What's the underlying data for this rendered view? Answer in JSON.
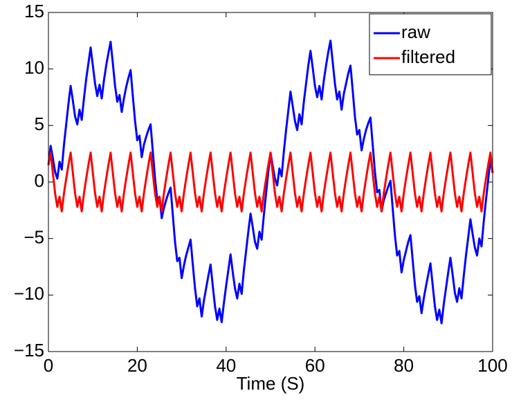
{
  "chart_data": {
    "type": "line",
    "x_label": "Time (S)",
    "xlim": [
      0,
      100
    ],
    "xticks": [
      0,
      20,
      40,
      60,
      80,
      100
    ],
    "ylim": [
      -15,
      15
    ],
    "yticks": [
      {
        "value": -15,
        "label": "−15"
      },
      {
        "value": -10,
        "label": "−10"
      },
      {
        "value": -5,
        "label": "−5"
      },
      0,
      5,
      10,
      15
    ],
    "legend": "northeast",
    "x": [
      0,
      0.5,
      1,
      1.5,
      2,
      2.5,
      3,
      3.5,
      4,
      4.5,
      5,
      5.5,
      6,
      6.5,
      7,
      7.5,
      8,
      8.5,
      9,
      9.5,
      10,
      10.5,
      11,
      11.5,
      12,
      12.5,
      13,
      13.5,
      14,
      14.5,
      15,
      15.5,
      16,
      16.5,
      17,
      17.5,
      18,
      18.5,
      19,
      19.5,
      20,
      20.5,
      21,
      21.5,
      22,
      22.5,
      23,
      23.5,
      24,
      24.5,
      25,
      25.5,
      26,
      26.5,
      27,
      27.5,
      28,
      28.5,
      29,
      29.5,
      30,
      30.5,
      31,
      31.5,
      32,
      32.5,
      33,
      33.5,
      34,
      34.5,
      35,
      35.5,
      36,
      36.5,
      37,
      37.5,
      38,
      38.5,
      39,
      39.5,
      40,
      40.5,
      41,
      41.5,
      42,
      42.5,
      43,
      43.5,
      44,
      44.5,
      45,
      45.5,
      46,
      46.5,
      47,
      47.5,
      48,
      48.5,
      49,
      49.5,
      50,
      50.5,
      51,
      51.5,
      52,
      52.5,
      53,
      53.5,
      54,
      54.5,
      55,
      55.5,
      56,
      56.5,
      57,
      57.5,
      58,
      58.5,
      59,
      59.5,
      60,
      60.5,
      61,
      61.5,
      62,
      62.5,
      63,
      63.5,
      64,
      64.5,
      65,
      65.5,
      66,
      66.5,
      67,
      67.5,
      68,
      68.5,
      69,
      69.5,
      70,
      70.5,
      71,
      71.5,
      72,
      72.5,
      73,
      73.5,
      74,
      74.5,
      75,
      75.5,
      76,
      76.5,
      77,
      77.5,
      78,
      78.5,
      79,
      79.5,
      80,
      80.5,
      81,
      81.5,
      82,
      82.5,
      83,
      83.5,
      84,
      84.5,
      85,
      85.5,
      86,
      86.5,
      87,
      87.5,
      88,
      88.5,
      89,
      89.5,
      90,
      90.5,
      91,
      91.5,
      92,
      92.5,
      93,
      93.5,
      94,
      94.5,
      95,
      95.5,
      96,
      96.5,
      97,
      97.5,
      98,
      98.5,
      99,
      99.5,
      100
    ],
    "series": [
      {
        "name": "raw",
        "color": "#0000ff",
        "values": [
          1.5,
          3.2,
          2.1,
          0.9,
          0.3,
          1.8,
          1.1,
          3.3,
          5.1,
          6.9,
          8.5,
          7.2,
          5.8,
          5.1,
          6.4,
          5.5,
          7.4,
          9.1,
          10.5,
          11.9,
          10.3,
          8.7,
          7.6,
          8.6,
          7.4,
          9.0,
          10.3,
          11.4,
          12.4,
          10.5,
          8.5,
          7.1,
          7.7,
          6.2,
          7.4,
          8.4,
          9.2,
          9.9,
          7.6,
          5.4,
          3.7,
          4.1,
          2.2,
          3.3,
          4.0,
          4.6,
          5.1,
          2.7,
          0.3,
          -1.6,
          -1.3,
          -3.2,
          -2.3,
          -1.6,
          -1.0,
          -0.5,
          -2.9,
          -5.3,
          -7.0,
          -6.7,
          -8.5,
          -7.4,
          -6.5,
          -5.8,
          -5.1,
          -7.3,
          -9.4,
          -11.0,
          -10.3,
          -11.9,
          -10.5,
          -9.4,
          -8.3,
          -7.3,
          -9.2,
          -11.0,
          -12.2,
          -11.2,
          -12.4,
          -10.7,
          -9.2,
          -7.8,
          -6.4,
          -8.0,
          -9.4,
          -10.3,
          -9.0,
          -9.9,
          -7.8,
          -6.1,
          -4.4,
          -2.8,
          -4.0,
          -5.3,
          -5.9,
          -4.4,
          -5.1,
          -2.9,
          -1.0,
          0.9,
          2.6,
          1.4,
          0.3,
          -0.3,
          1.2,
          0.5,
          2.7,
          4.6,
          6.3,
          8.0,
          6.7,
          5.4,
          4.6,
          6.0,
          5.1,
          7.1,
          8.7,
          10.3,
          11.6,
          10.1,
          8.5,
          7.5,
          8.5,
          7.3,
          9.0,
          10.3,
          11.5,
          12.5,
          10.6,
          8.7,
          7.3,
          8.0,
          6.4,
          7.8,
          8.7,
          9.6,
          10.3,
          8.1,
          5.8,
          4.2,
          4.6,
          2.8,
          3.8,
          4.6,
          5.2,
          5.7,
          3.3,
          0.9,
          -0.9,
          -0.7,
          -2.6,
          -1.6,
          -1.0,
          -0.4,
          0.1,
          -2.3,
          -4.7,
          -6.5,
          -6.1,
          -8.0,
          -6.9,
          -6.1,
          -5.3,
          -4.7,
          -6.9,
          -9.1,
          -10.6,
          -10.1,
          -11.6,
          -10.3,
          -9.2,
          -8.2,
          -7.2,
          -9.1,
          -11.0,
          -12.2,
          -11.3,
          -12.5,
          -10.8,
          -9.4,
          -8.0,
          -6.7,
          -8.2,
          -9.8,
          -10.6,
          -9.4,
          -10.3,
          -8.3,
          -6.5,
          -4.9,
          -3.3,
          -4.6,
          -5.8,
          -6.5,
          -5.0,
          -5.7,
          -3.5,
          -1.6,
          0.2,
          2.0,
          0.8
        ]
      },
      {
        "name": "filtered",
        "color": "#ff0000",
        "values": [
          1.5,
          2.6,
          0.8,
          -1.0,
          -2.2,
          -1.3,
          -2.6,
          -1.0,
          0.3,
          1.5,
          2.6,
          0.8,
          -1.0,
          -2.2,
          -1.3,
          -2.6,
          -1.0,
          0.3,
          1.5,
          2.6,
          0.8,
          -1.0,
          -2.2,
          -1.3,
          -2.6,
          -1.0,
          0.3,
          1.5,
          2.6,
          0.8,
          -1.0,
          -2.2,
          -1.3,
          -2.6,
          -1.0,
          0.3,
          1.5,
          2.6,
          0.8,
          -1.0,
          -2.2,
          -1.3,
          -2.6,
          -1.0,
          0.3,
          1.5,
          2.6,
          0.8,
          -1.0,
          -2.2,
          -1.3,
          -2.6,
          -1.0,
          0.3,
          1.5,
          2.6,
          0.8,
          -1.0,
          -2.2,
          -1.3,
          -2.6,
          -1.0,
          0.3,
          1.5,
          2.6,
          0.8,
          -1.0,
          -2.2,
          -1.3,
          -2.6,
          -1.0,
          0.3,
          1.5,
          2.6,
          0.8,
          -1.0,
          -2.2,
          -1.3,
          -2.6,
          -1.0,
          0.3,
          1.5,
          2.6,
          0.8,
          -1.0,
          -2.2,
          -1.3,
          -2.6,
          -1.0,
          0.3,
          1.5,
          2.6,
          0.8,
          -1.0,
          -2.2,
          -1.3,
          -2.6,
          -1.0,
          0.3,
          1.5,
          2.6,
          0.8,
          -1.0,
          -2.2,
          -1.3,
          -2.6,
          -1.0,
          0.3,
          1.5,
          2.6,
          0.8,
          -1.0,
          -2.2,
          -1.3,
          -2.6,
          -1.0,
          0.3,
          1.5,
          2.6,
          0.8,
          -1.0,
          -2.2,
          -1.3,
          -2.6,
          -1.0,
          0.3,
          1.5,
          2.6,
          0.8,
          -1.0,
          -2.2,
          -1.3,
          -2.6,
          -1.0,
          0.3,
          1.5,
          2.6,
          0.8,
          -1.0,
          -2.2,
          -1.3,
          -2.6,
          -1.0,
          0.3,
          1.5,
          2.6,
          0.8,
          -1.0,
          -2.2,
          -1.3,
          -2.6,
          -1.0,
          0.3,
          1.5,
          2.6,
          0.8,
          -1.0,
          -2.2,
          -1.3,
          -2.6,
          -1.0,
          0.3,
          1.5,
          2.6,
          0.8,
          -1.0,
          -2.2,
          -1.3,
          -2.6,
          -1.0,
          0.3,
          1.5,
          2.6,
          0.8,
          -1.0,
          -2.2,
          -1.3,
          -2.6,
          -1.0,
          0.3,
          1.5,
          2.6,
          0.8,
          -1.0,
          -2.2,
          -1.3,
          -2.6,
          -1.0,
          0.3,
          1.5,
          2.6,
          0.8,
          -1.0,
          -2.2,
          -1.3,
          -2.6,
          -1.0,
          0.3,
          1.5,
          2.6,
          0.8
        ]
      }
    ]
  }
}
